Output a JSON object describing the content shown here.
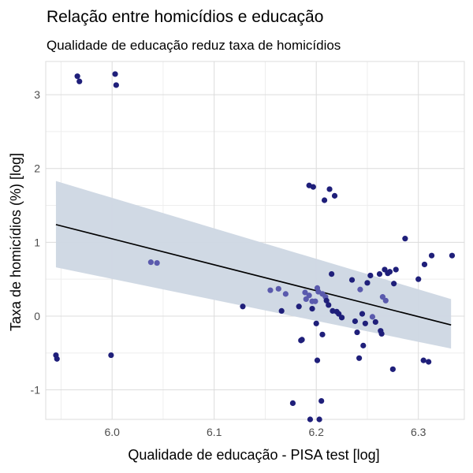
{
  "chart_data": {
    "type": "scatter",
    "title": "Relação entre homicídios e educação",
    "subtitle": "Qualidade de educação reduz taxa de homicídios",
    "xlabel": "Qualidade de educação - PISA test [log]",
    "ylabel": "Taxa de homicídios (%) [log]",
    "xlim": [
      5.935,
      6.345
    ],
    "ylim": [
      -1.4,
      3.45
    ],
    "x_ticks": [
      6.0,
      6.1,
      6.2,
      6.3
    ],
    "x_tick_labels": [
      "6.0",
      "6.1",
      "6.2",
      "6.3"
    ],
    "y_ticks": [
      -1,
      0,
      1,
      2,
      3
    ],
    "y_tick_labels": [
      "-1",
      "0",
      "1",
      "2",
      "3"
    ],
    "grid": true,
    "colors": {
      "point_dark": "#1f1f7a",
      "point_light": "#5a5aad",
      "ribbon": "#cdd7e3",
      "line": "#000000",
      "grid_major": "#dcdcdc",
      "grid_minor": "#eeeeee"
    },
    "trend": {
      "x": [
        5.945,
        6.332
      ],
      "y": [
        1.24,
        -0.12
      ],
      "ci_lower": [
        0.66,
        -0.44
      ],
      "ci_upper": [
        1.83,
        0.23
      ]
    },
    "points": {
      "x": [
        5.966,
        5.968,
        6.003,
        6.004,
        5.945,
        5.946,
        5.999,
        6.038,
        6.044,
        6.128,
        6.155,
        6.163,
        6.166,
        6.17,
        6.177,
        6.183,
        6.185,
        6.186,
        6.189,
        6.19,
        6.193,
        6.194,
        6.196,
        6.197,
        6.199,
        6.2,
        6.201,
        6.202,
        6.203,
        6.205,
        6.206,
        6.208,
        6.209,
        6.21,
        6.212,
        6.213,
        6.215,
        6.216,
        6.218,
        6.22,
        6.222,
        6.225,
        6.235,
        6.238,
        6.24,
        6.242,
        6.243,
        6.245,
        6.246,
        6.248,
        6.25,
        6.253,
        6.255,
        6.258,
        6.262,
        6.263,
        6.264,
        6.265,
        6.267,
        6.268,
        6.27,
        6.272,
        6.275,
        6.276,
        6.278,
        6.287,
        6.3,
        6.305,
        6.306,
        6.31,
        6.313,
        6.333,
        6.193,
        6.201,
        6.206,
        6.196
      ],
      "y": [
        3.25,
        3.18,
        3.28,
        3.13,
        -0.53,
        -0.58,
        -0.53,
        0.73,
        0.72,
        0.13,
        0.35,
        0.37,
        0.07,
        0.3,
        -1.18,
        0.13,
        -0.33,
        -0.32,
        0.32,
        0.23,
        1.77,
        -1.4,
        0.1,
        1.75,
        0.2,
        -0.1,
        -0.6,
        0.33,
        -1.4,
        -1.15,
        -0.25,
        1.57,
        0.26,
        0.21,
        0.15,
        1.72,
        0.57,
        0.07,
        1.63,
        0.06,
        0.03,
        -0.02,
        0.49,
        -0.07,
        -0.22,
        -0.57,
        0.36,
        0.03,
        -0.4,
        -0.1,
        0.45,
        0.55,
        -0.01,
        -0.08,
        0.57,
        -0.2,
        -0.24,
        0.26,
        0.63,
        0.21,
        0.58,
        0.6,
        -0.72,
        0.44,
        0.63,
        1.05,
        0.5,
        -0.6,
        0.7,
        -0.62,
        0.82,
        0.82,
        0.28,
        0.38,
        0.3,
        0.2
      ],
      "shade": [
        "dark",
        "dark",
        "dark",
        "dark",
        "dark",
        "dark",
        "dark",
        "light",
        "light",
        "dark",
        "light",
        "light",
        "dark",
        "light",
        "dark",
        "dark",
        "dark",
        "dark",
        "light",
        "light",
        "dark",
        "dark",
        "dark",
        "dark",
        "light",
        "dark",
        "dark",
        "light",
        "dark",
        "dark",
        "dark",
        "dark",
        "light",
        "dark",
        "dark",
        "dark",
        "dark",
        "dark",
        "dark",
        "dark",
        "dark",
        "dark",
        "dark",
        "dark",
        "dark",
        "dark",
        "light",
        "dark",
        "dark",
        "dark",
        "dark",
        "dark",
        "light",
        "dark",
        "dark",
        "dark",
        "dark",
        "light",
        "dark",
        "light",
        "dark",
        "dark",
        "dark",
        "dark",
        "dark",
        "dark",
        "dark",
        "dark",
        "dark",
        "dark",
        "dark",
        "dark",
        "light",
        "light",
        "light",
        "light"
      ]
    }
  }
}
